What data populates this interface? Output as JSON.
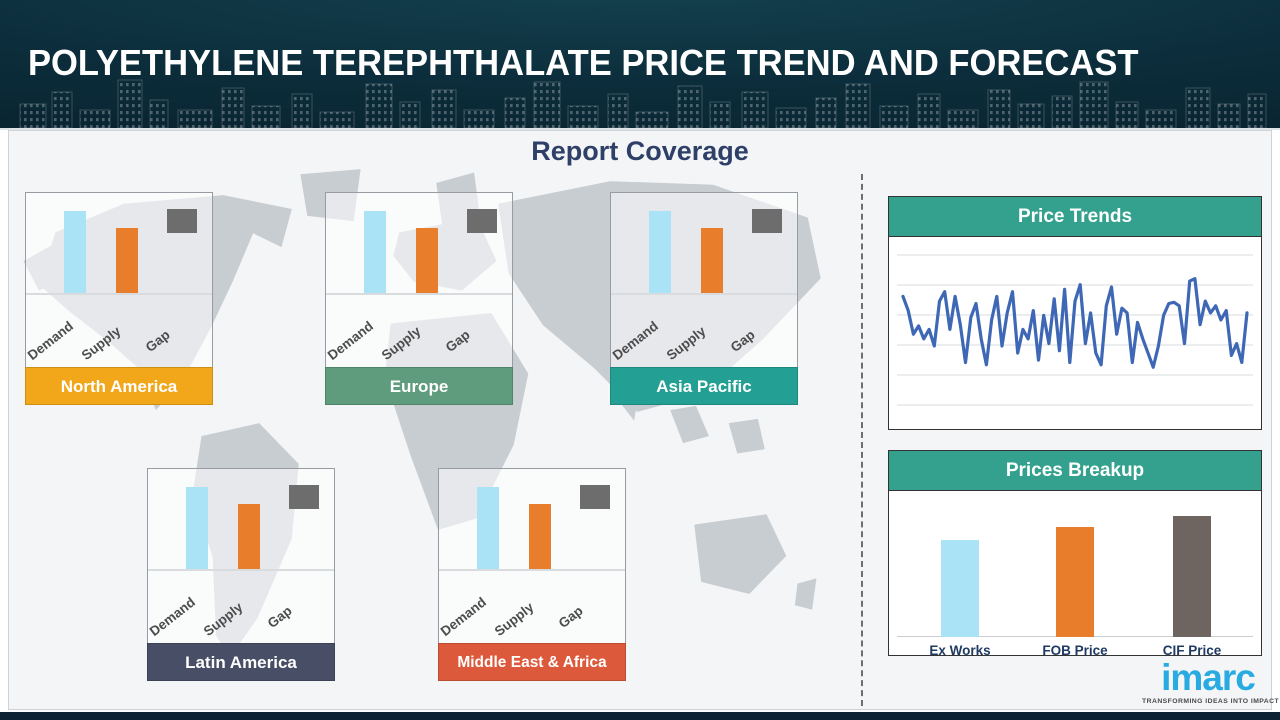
{
  "header": {
    "title": "POLYETHYLENE TEREPHTHALATE PRICE TREND AND FORECAST"
  },
  "section": {
    "title": "Report Coverage"
  },
  "logo": {
    "brand": "imarc",
    "tagline": "TRANSFORMING IDEAS INTO IMPACT",
    "brand_color": "#29abe2"
  },
  "colors": {
    "demand_bar": "#aae3f5",
    "supply_bar": "#e87d2b",
    "gap_marker": "#6d6d6d",
    "panel_header_green": "#33a18d",
    "header_navy": "#0c2d3b",
    "title_navy": "#2e3f68"
  },
  "chart_data": [
    {
      "id": "region-north-america",
      "type": "bar",
      "title": "North America",
      "categories": [
        "Demand",
        "Supply",
        "Gap"
      ],
      "values": [
        80,
        64,
        16
      ],
      "colors": [
        "#aae3f5",
        "#e87d2b",
        "#6d6d6d"
      ],
      "label_color": "#f2a71b",
      "note": "values estimated 0-100, no axis labels shown; gap drawn as floating square marker"
    },
    {
      "id": "region-europe",
      "type": "bar",
      "title": "Europe",
      "categories": [
        "Demand",
        "Supply",
        "Gap"
      ],
      "values": [
        80,
        64,
        16
      ],
      "colors": [
        "#aae3f5",
        "#e87d2b",
        "#6d6d6d"
      ],
      "label_color": "#5f9c7d",
      "note": "values estimated 0-100, no axis labels shown; gap drawn as floating square marker"
    },
    {
      "id": "region-asia-pacific",
      "type": "bar",
      "title": "Asia Pacific",
      "categories": [
        "Demand",
        "Supply",
        "Gap"
      ],
      "values": [
        80,
        64,
        16
      ],
      "colors": [
        "#aae3f5",
        "#e87d2b",
        "#6d6d6d"
      ],
      "label_color": "#23a093",
      "note": "values estimated 0-100, no axis labels shown; gap drawn as floating square marker"
    },
    {
      "id": "region-latin-america",
      "type": "bar",
      "title": "Latin America",
      "categories": [
        "Demand",
        "Supply",
        "Gap"
      ],
      "values": [
        80,
        64,
        16
      ],
      "colors": [
        "#aae3f5",
        "#e87d2b",
        "#6d6d6d"
      ],
      "label_color": "#474e66",
      "note": "values estimated 0-100, no axis labels shown; gap drawn as floating square marker"
    },
    {
      "id": "region-middle-east-africa",
      "type": "bar",
      "title": "Middle East & Africa",
      "categories": [
        "Demand",
        "Supply",
        "Gap"
      ],
      "values": [
        80,
        64,
        16
      ],
      "colors": [
        "#aae3f5",
        "#e87d2b",
        "#6d6d6d"
      ],
      "label_color": "#dc5a3b",
      "note": "values estimated 0-100, no axis labels shown; gap drawn as floating square marker"
    },
    {
      "id": "price-trends",
      "type": "line",
      "title": "Price Trends",
      "xlabel": "",
      "ylabel": "",
      "ylim": [
        0,
        100
      ],
      "grid": true,
      "legend": "none",
      "line_color": "#3e68b5",
      "values": [
        70,
        58,
        38,
        45,
        34,
        42,
        28,
        66,
        74,
        42,
        70,
        46,
        14,
        52,
        64,
        34,
        12,
        50,
        70,
        28,
        56,
        74,
        22,
        42,
        34,
        58,
        16,
        54,
        30,
        68,
        24,
        76,
        14,
        66,
        80,
        30,
        56,
        22,
        12,
        62,
        78,
        38,
        60,
        56,
        14,
        48,
        34,
        22,
        10,
        28,
        54,
        64,
        65,
        62,
        30,
        83,
        85,
        46,
        66,
        56,
        62,
        50,
        58,
        20,
        30,
        14,
        56
      ],
      "note": "unlabeled noisy price series; values estimated 0-100 from gridlines"
    },
    {
      "id": "prices-breakup",
      "type": "bar",
      "title": "Prices Breakup",
      "categories": [
        "Ex Works",
        "FOB Price",
        "CIF Price"
      ],
      "values": [
        70,
        80,
        88
      ],
      "colors": [
        "#aae3f5",
        "#e87d2b",
        "#6e6460"
      ],
      "note": "values estimated 0-100, no axis shown"
    }
  ]
}
